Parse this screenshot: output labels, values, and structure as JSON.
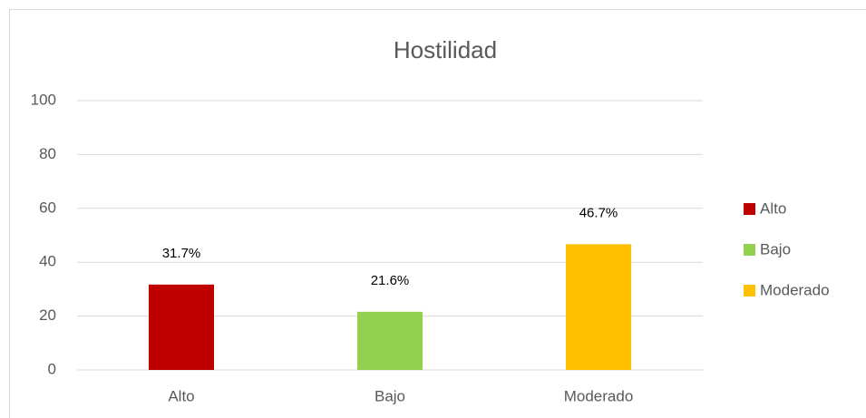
{
  "chart_data": {
    "type": "bar",
    "title": "Hostilidad",
    "categories": [
      "Alto",
      "Bajo",
      "Moderado"
    ],
    "values": [
      31.7,
      21.6,
      46.7
    ],
    "value_labels": [
      "31.7%",
      "21.6%",
      "46.7%"
    ],
    "colors": [
      "#c00000",
      "#92d050",
      "#ffc000"
    ],
    "ylim": [
      0,
      100
    ],
    "yticks": [
      0,
      20,
      40,
      60,
      80,
      100
    ],
    "grid": true,
    "legend": "right"
  }
}
